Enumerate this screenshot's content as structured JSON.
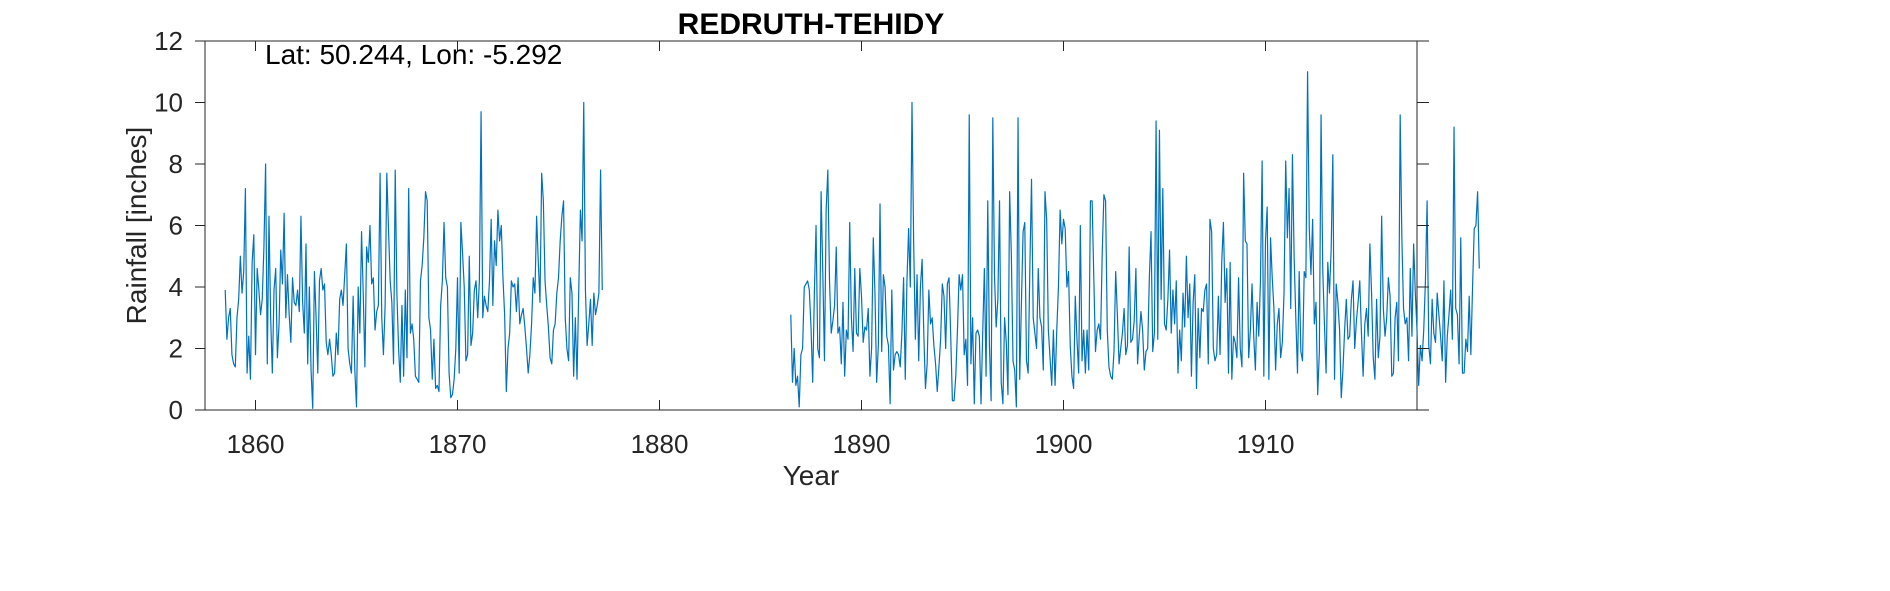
{
  "chart_data": {
    "type": "line",
    "title": "REDRUTH-TEHIDY",
    "xlabel": "Year",
    "ylabel": "Rainfall [inches]",
    "annotation": "Lat: 50.244, Lon: -5.292",
    "xlim": [
      1857.5,
      1917.5
    ],
    "ylim": [
      0,
      12
    ],
    "xticks": [
      1860,
      1870,
      1880,
      1890,
      1900,
      1910
    ],
    "yticks": [
      0,
      2,
      4,
      6,
      8,
      10,
      12
    ],
    "grid": false,
    "box": true,
    "line_color": "#0072BD",
    "series": [
      {
        "segments": [
          {
            "start": 1858.5,
            "step": 0.0833333,
            "y": [
              3.9,
              2.3,
              3.0,
              3.3,
              1.8,
              1.5,
              1.4,
              3.0,
              3.6,
              5.0,
              3.8,
              4.5,
              7.2,
              1.2,
              2.4,
              1.0,
              4.8,
              5.7,
              1.8,
              4.6,
              3.9,
              3.1,
              3.6,
              5.3,
              8.0,
              1.5,
              6.3,
              3.0,
              1.2,
              3.9,
              4.6,
              1.7,
              2.8,
              5.2,
              4.1,
              6.4,
              3.0,
              4.4,
              3.1,
              2.2,
              4.3,
              3.5,
              3.4,
              3.9,
              3.2,
              6.3,
              3.5,
              2.5,
              5.4,
              1.5,
              4.0,
              1.3,
              0.05,
              4.5,
              3.0,
              1.2,
              4.2,
              4.6,
              3.9,
              4.1,
              2.2,
              1.8,
              2.3,
              1.8,
              1.1,
              1.2,
              2.5,
              1.8,
              3.6,
              3.9,
              3.4,
              4.4,
              5.4,
              2.0,
              1.5,
              1.2,
              3.7,
              1.3,
              0.1,
              4.0,
              2.5,
              5.8,
              3.8,
              1.4,
              5.3,
              4.8,
              6.0,
              4.1,
              4.3,
              2.6,
              3.2,
              3.4,
              7.7,
              3.0,
              1.8,
              3.4,
              7.7,
              5.9,
              4.2,
              3.5,
              1.5,
              7.8,
              3.8,
              2.0,
              0.9,
              3.4,
              1.1,
              3.9,
              1.7,
              7.2,
              2.5,
              2.8,
              2.3,
              1.1,
              1.0,
              0.9,
              4.2,
              4.7,
              5.6,
              7.1,
              6.8,
              3.0,
              2.6,
              1.0,
              2.3,
              0.7,
              0.8,
              0.6,
              3.4,
              4.2,
              6.1,
              4.3,
              4.0,
              1.2,
              0.4,
              0.5,
              1.0,
              2.0,
              4.3,
              1.2,
              6.1,
              5.1,
              4.0,
              1.6,
              1.8,
              5.0,
              2.1,
              2.5,
              3.9,
              4.2,
              3.0,
              4.2,
              9.7,
              3.0,
              3.7,
              3.4,
              3.2,
              4.2,
              6.2,
              3.4,
              5.5,
              4.7,
              6.5,
              5.5,
              6.0,
              4.3,
              3.1,
              0.6,
              2.0,
              2.5,
              4.2,
              4.0,
              4.1,
              3.2,
              4.3,
              2.8,
              3.1,
              3.3,
              2.7,
              2.0,
              1.2,
              1.8,
              2.8,
              4.3,
              3.8,
              6.3,
              4.8,
              3.5,
              7.7,
              6.8,
              4.2,
              3.4,
              2.7,
              1.7,
              1.5,
              2.6,
              2.8,
              3.8,
              4.3,
              5.5,
              6.3,
              6.8,
              3.0,
              2.0,
              1.6,
              4.3,
              3.8,
              1.1,
              3.0,
              1.0,
              3.8,
              6.5,
              5.5,
              10.0,
              3.9,
              2.1,
              2.8,
              3.6,
              2.1,
              3.8,
              3.1,
              3.4,
              3.8,
              7.8,
              3.9
            ]
          },
          {
            "start": 1886.5,
            "step": 0.0833333,
            "y": [
              3.1,
              0.9,
              2.0,
              0.8,
              1.1,
              0.1,
              1.8,
              2.0,
              4.0,
              4.1,
              4.2,
              3.9,
              2.7,
              0.9,
              3.8,
              6.0,
              2.0,
              1.7,
              7.1,
              4.5,
              1.6,
              6.5,
              7.8,
              4.2,
              2.5,
              2.9,
              3.4,
              5.3,
              2.5,
              2.7,
              1.5,
              3.5,
              1.1,
              2.6,
              2.3,
              6.1,
              3.0,
              1.9,
              4.6,
              2.5,
              2.4,
              4.6,
              3.7,
              2.2,
              2.7,
              2.6,
              3.3,
              1.1,
              2.0,
              5.6,
              3.8,
              0.9,
              2.1,
              6.7,
              1.9,
              4.4,
              4.0,
              2.4,
              2.1,
              0.2,
              3.9,
              1.3,
              1.8,
              1.9,
              1.8,
              1.4,
              2.5,
              4.3,
              1.0,
              4.2,
              5.9,
              4.0,
              10.0,
              5.4,
              2.3,
              4.4,
              1.6,
              4.0,
              4.9,
              2.5,
              0.7,
              1.5,
              3.9,
              2.8,
              3.0,
              2.1,
              1.5,
              0.6,
              1.4,
              2.3,
              4.1,
              3.7,
              2.0,
              4.1,
              4.3,
              2.4,
              0.3,
              0.3,
              1.1,
              2.6,
              4.4,
              3.9,
              4.4,
              1.8,
              2.3,
              0.8,
              9.6,
              1.5,
              3.0,
              0.2,
              2.5,
              2.6,
              2.4,
              0.2,
              2.5,
              4.6,
              1.1,
              6.8,
              2.1,
              0.3,
              9.5,
              4.4,
              2.7,
              3.6,
              6.8,
              0.9,
              0.2,
              3.0,
              2.2,
              0.5,
              7.1,
              5.1,
              1.6,
              1.3,
              0.1,
              9.5,
              1.0,
              3.5,
              5.8,
              6.1,
              1.6,
              1.2,
              4.6,
              7.5,
              3.0,
              2.5,
              2.0,
              4.6,
              3.0,
              2.7,
              1.3,
              7.1,
              6.2,
              2.6,
              1.7,
              0.8,
              2.6,
              0.8,
              2.6,
              4.0,
              6.5,
              5.4,
              6.2,
              5.9,
              4.0,
              4.5,
              2.1,
              1.1,
              0.7,
              3.7,
              2.3,
              1.2,
              6.0,
              1.6,
              2.6,
              1.2,
              2.6,
              1.3,
              6.8,
              6.8,
              4.3,
              1.9,
              2.6,
              2.8,
              2.3,
              5.1,
              7.0,
              6.8,
              2.6,
              1.4,
              1.1,
              1.0,
              1.9,
              4.5,
              3.1,
              1.5,
              2.0,
              2.5,
              3.3,
              1.8,
              2.1,
              5.3,
              2.2,
              2.3,
              2.9,
              4.6,
              1.5,
              2.4,
              3.2,
              2.6,
              1.3,
              1.9,
              2.0,
              4.3,
              5.8,
              1.9,
              2.5,
              9.4,
              2.3,
              9.1,
              3.6,
              7.2,
              2.8,
              2.6,
              3.6,
              5.2,
              2.5,
              3.9,
              2.8,
              4.2,
              1.2,
              2.6,
              1.6,
              3.8,
              2.7,
              5.0,
              3.0,
              4.1,
              1.1,
              3.5,
              4.4,
              0.7,
              3.3,
              1.7,
              3.3,
              3.2,
              3.9,
              4.1,
              1.5,
              6.2,
              5.8,
              2.0,
              1.6,
              1.8,
              3.7,
              1.8,
              4.8,
              6.1,
              3.5,
              4.6,
              1.2,
              4.8,
              1.0,
              2.4,
              2.2,
              1.7,
              4.3,
              2.0,
              1.4,
              7.7,
              5.5,
              5.4,
              1.7,
              2.6,
              4.1,
              2.4,
              1.3,
              3.5,
              2.4,
              4.2,
              8.1,
              1.1,
              5.5,
              6.6,
              1.0,
              5.6,
              4.3,
              3.3,
              1.3,
              2.8,
              3.3,
              1.7,
              2.2,
              3.8,
              8.1,
              5.6,
              7.2,
              3.3,
              8.3,
              5.0,
              3.0,
              1.2,
              4.5,
              1.9,
              1.6,
              4.5,
              4.3,
              11.0,
              5.9,
              4.4,
              6.2,
              2.8,
              3.5,
              0.5,
              1.9,
              9.6,
              4.6,
              2.8,
              1.2,
              4.8,
              3.8,
              5.2,
              8.3,
              1.0,
              4.1,
              3.5,
              2.6,
              0.4,
              1.3,
              2.6,
              3.6,
              2.3,
              2.4,
              3.6,
              4.2,
              2.0,
              2.9,
              3.5,
              4.2,
              2.5,
              1.1,
              2.8,
              3.3,
              2.4,
              5.4,
              3.8,
              1.7,
              1.0,
              3.6,
              1.7,
              2.4,
              6.3,
              3.3,
              2.4,
              3.0,
              4.3,
              3.7,
              1.1,
              1.2,
              3.0,
              3.5,
              1.6,
              9.6,
              5.6,
              3.3,
              2.8,
              3.0,
              1.6,
              4.6,
              2.4,
              5.4,
              3.8,
              2.6,
              0.8,
              2.1,
              1.6,
              2.6,
              4.2,
              6.8,
              2.1,
              1.5,
              3.6,
              2.5,
              2.2,
              3.8,
              3.1,
              2.4,
              1.6,
              4.2,
              0.9,
              2.4,
              3.1,
              3.9,
              2.3,
              9.2,
              3.3,
              3.1,
              1.5,
              5.6,
              1.2,
              1.2,
              2.3,
              1.9,
              3.7,
              1.8,
              4.0,
              5.9,
              6.0,
              7.1,
              4.6
            ]
          }
        ]
      }
    ]
  }
}
